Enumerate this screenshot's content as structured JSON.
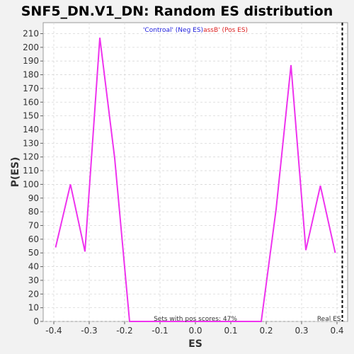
{
  "chart_data": {
    "type": "line",
    "title": "SNF5_DN.V1_DN: Random ES distribution",
    "xlabel": "ES",
    "ylabel": "P(ES)",
    "xlim": [
      -0.43,
      0.43
    ],
    "ylim": [
      0,
      218
    ],
    "xticks": [
      -0.4,
      -0.3,
      -0.2,
      -0.1,
      0.0,
      0.1,
      0.2,
      0.3,
      0.4
    ],
    "xtick_labels": [
      "-0.4",
      "-0.3",
      "-0.2",
      "-0.1",
      "0.0",
      "0.1",
      "0.2",
      "0.3",
      "0.4"
    ],
    "yticks": [
      0,
      10,
      20,
      30,
      40,
      50,
      60,
      70,
      80,
      90,
      100,
      110,
      120,
      130,
      140,
      150,
      160,
      170,
      180,
      190,
      200,
      210
    ],
    "grid": true,
    "legend_placement": "top-center",
    "legend": {
      "neg_label": "'Controal' (Neg ES)",
      "pos_label": "assB' (Pos ES)"
    },
    "series": [
      {
        "color": "#ee33ee",
        "x": [
          -0.395,
          -0.353,
          -0.312,
          -0.27,
          -0.228,
          -0.186,
          0.186,
          0.228,
          0.27,
          0.312,
          0.353,
          0.395
        ],
        "y": [
          54,
          100,
          51,
          207,
          119,
          0,
          0,
          82,
          187,
          52,
          99,
          50
        ]
      }
    ],
    "real_es": {
      "x": 0.415,
      "color": "#000000",
      "label": "Real ES"
    },
    "annotation": "Sets with pos scores: 47%"
  }
}
